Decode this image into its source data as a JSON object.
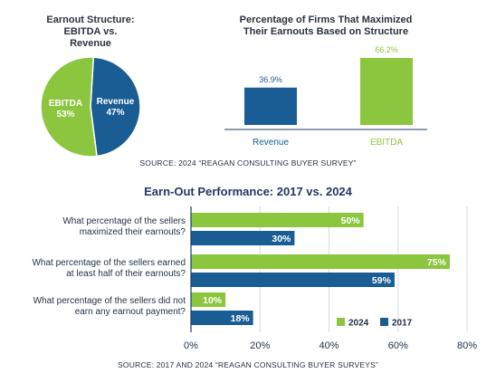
{
  "chart_data": [
    {
      "type": "pie",
      "title_lines": [
        "Earnout Structure:",
        "EBITDA vs.",
        "Revenue"
      ],
      "slices": [
        {
          "label": "Revenue",
          "value": 47,
          "value_label": "47%",
          "color": "#1a5c94"
        },
        {
          "label": "EBITDA",
          "value": 53,
          "value_label": "53%",
          "color": "#8cc63f"
        }
      ]
    },
    {
      "type": "bar",
      "title_lines": [
        "Percentage of Firms That Maximized",
        "Their Earnouts Based on Structure"
      ],
      "categories": [
        "Revenue",
        "EBITDA"
      ],
      "values": [
        36.9,
        66.2
      ],
      "value_labels": [
        "36.9%",
        "66.2%"
      ],
      "colors": [
        "#1a5c94",
        "#8cc63f"
      ],
      "ylim": [
        0,
        66.2
      ]
    },
    {
      "type": "bar",
      "orientation": "horizontal",
      "title": "Earn-Out Performance: 2017 vs. 2024",
      "categories": [
        [
          "What percentage of the sellers",
          "maximized their earnouts?"
        ],
        [
          "What percentage of the sellers earned",
          "at least half of their earnouts?"
        ],
        [
          "What percentage of the sellers did not",
          "earn any earnout payment?"
        ]
      ],
      "series": [
        {
          "name": "2024",
          "values": [
            50,
            75,
            10
          ],
          "value_labels": [
            "50%",
            "75%",
            "10%"
          ],
          "color": "#8cc63f"
        },
        {
          "name": "2017",
          "values": [
            30,
            59,
            18
          ],
          "value_labels": [
            "30%",
            "59%",
            "18%"
          ],
          "color": "#1a5c94"
        }
      ],
      "xlim": [
        0,
        80
      ],
      "xticks": [
        0,
        20,
        40,
        60,
        80
      ],
      "xtick_labels": [
        "0%",
        "20%",
        "40%",
        "60%",
        "80%"
      ],
      "legend_position": "bottom-right"
    }
  ],
  "sources": {
    "top": "SOURCE: 2024 “REAGAN CONSULTING BUYER SURVEY”",
    "bottom": "SOURCE: 2017 AND 2024 “REAGAN CONSULTING BUYER SURVEYS”"
  }
}
